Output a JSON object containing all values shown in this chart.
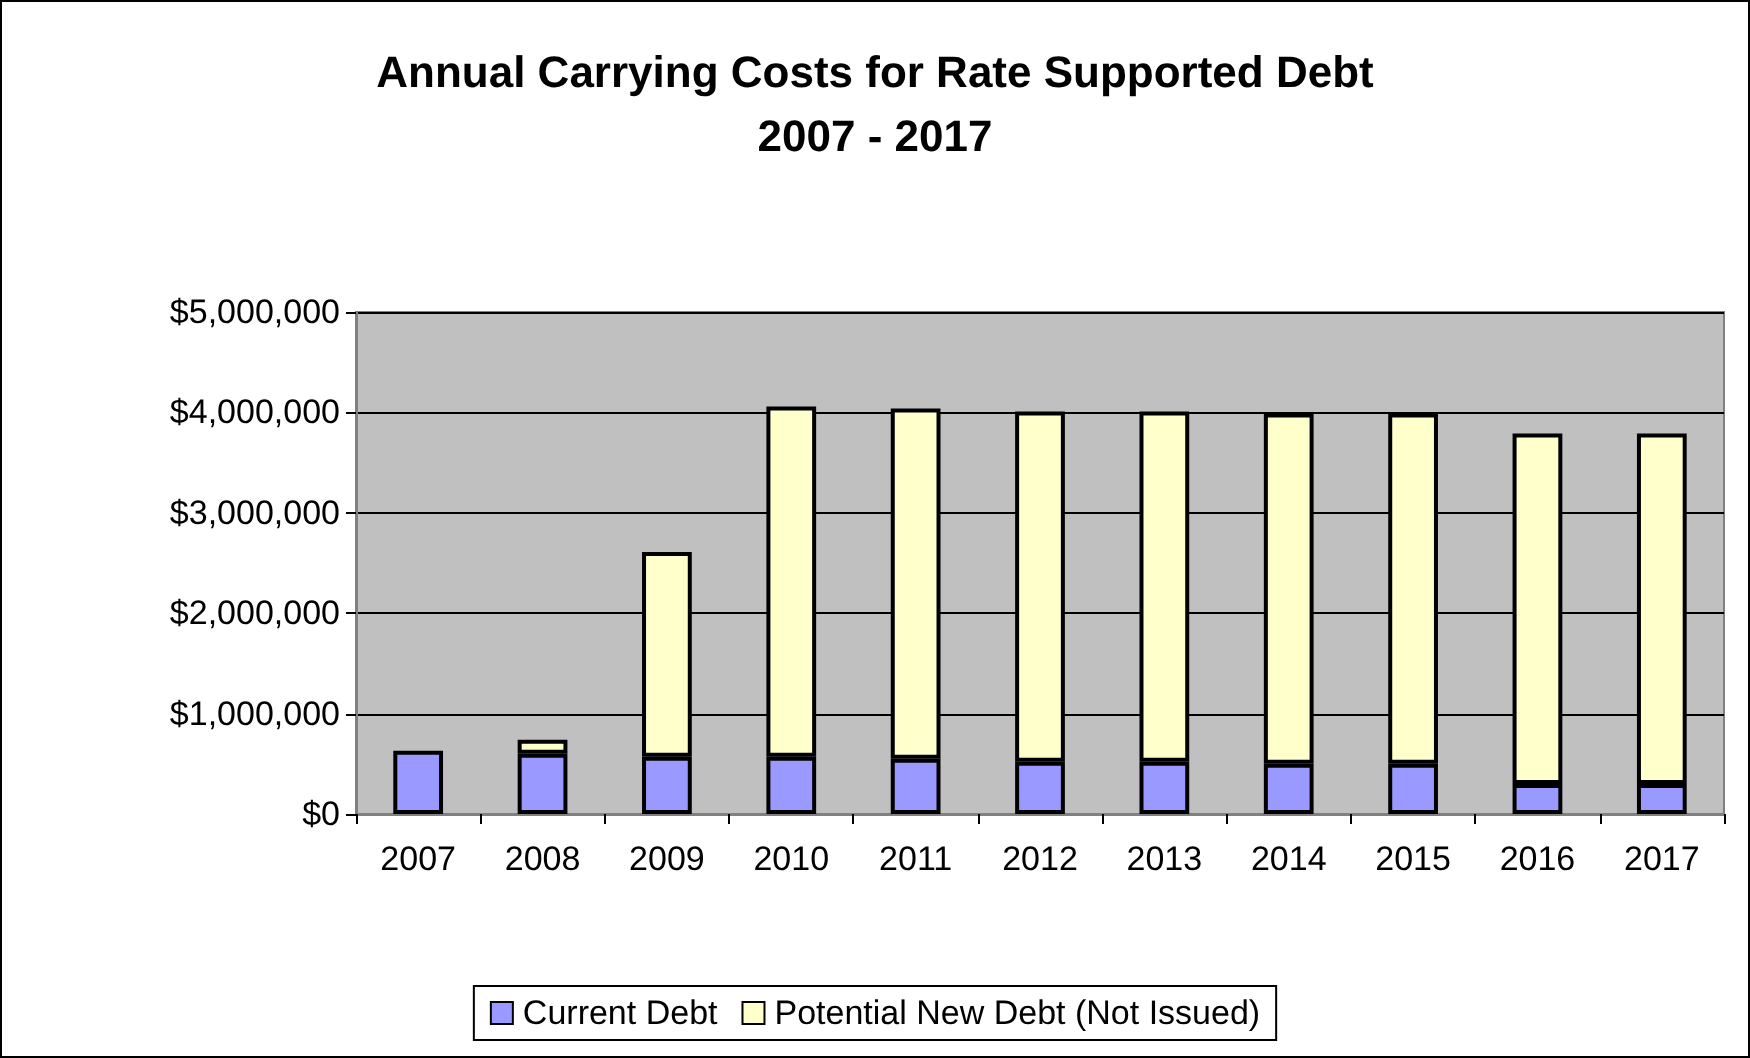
{
  "chart_data": {
    "type": "bar",
    "title": "Annual Carrying Costs for Rate Supported Debt\n2007 - 2017",
    "categories": [
      "2007",
      "2008",
      "2009",
      "2010",
      "2011",
      "2012",
      "2013",
      "2014",
      "2015",
      "2016",
      "2017"
    ],
    "stacked": true,
    "series": [
      {
        "name": "Current Debt",
        "color": "#9999ff",
        "values": [
          630000,
          600000,
          570000,
          570000,
          550000,
          520000,
          520000,
          500000,
          500000,
          300000,
          300000
        ]
      },
      {
        "name": "Potential New Debt (Not Issued)",
        "color": "#ffffcc",
        "values": [
          null,
          140000,
          2040000,
          3490000,
          3490000,
          3490000,
          3490000,
          3490000,
          3490000,
          3490000,
          3490000
        ]
      }
    ],
    "ylim": [
      0,
      5000000
    ],
    "yticks": [
      {
        "value": 0,
        "label": "$0"
      },
      {
        "value": 1000000,
        "label": "$1,000,000"
      },
      {
        "value": 2000000,
        "label": "$2,000,000"
      },
      {
        "value": 3000000,
        "label": "$3,000,000"
      },
      {
        "value": 4000000,
        "label": "$4,000,000"
      },
      {
        "value": 5000000,
        "label": "$5,000,000"
      }
    ],
    "grid": "y",
    "legend": "bottom"
  }
}
